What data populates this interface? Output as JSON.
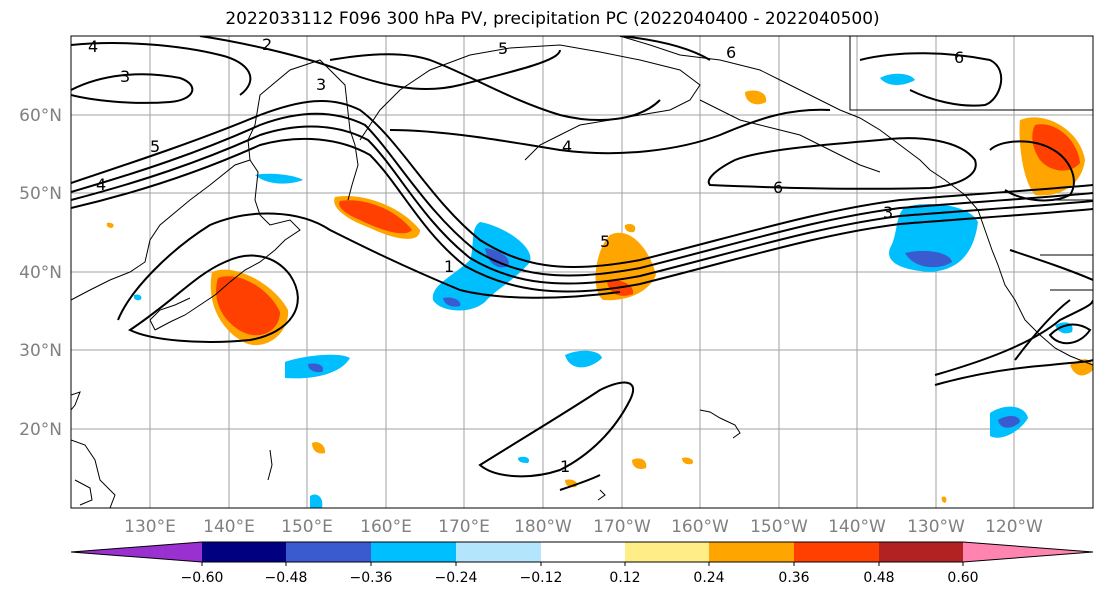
{
  "title": "2022033112 F096 300 hPa PV, precipitation PC (2022040400 - 2022040500)",
  "map": {
    "lon_labels": [
      "130°E",
      "140°E",
      "150°E",
      "160°E",
      "170°E",
      "180°W",
      "170°W",
      "160°W",
      "150°W",
      "140°W",
      "130°W",
      "120°W"
    ],
    "lat_labels": [
      "20°N",
      "30°N",
      "40°N",
      "50°N",
      "60°N"
    ],
    "contour_labels": [
      "4",
      "3",
      "2",
      "5",
      "3",
      "6",
      "6",
      "5",
      "4",
      "4",
      "6",
      "3",
      "1",
      "5",
      "1"
    ]
  },
  "colorbar": {
    "colors": [
      "#9b30d0",
      "#000080",
      "#3a5bd0",
      "#00bfff",
      "#b3e5fc",
      "#ffffff",
      "#ffee88",
      "#ffa500",
      "#ff4000",
      "#b22222",
      "#ff85b0"
    ],
    "tick_labels": [
      "−0.60",
      "−0.48",
      "−0.36",
      "−0.24",
      "−0.12",
      "0.12",
      "0.24",
      "0.36",
      "0.48",
      "0.60"
    ]
  }
}
